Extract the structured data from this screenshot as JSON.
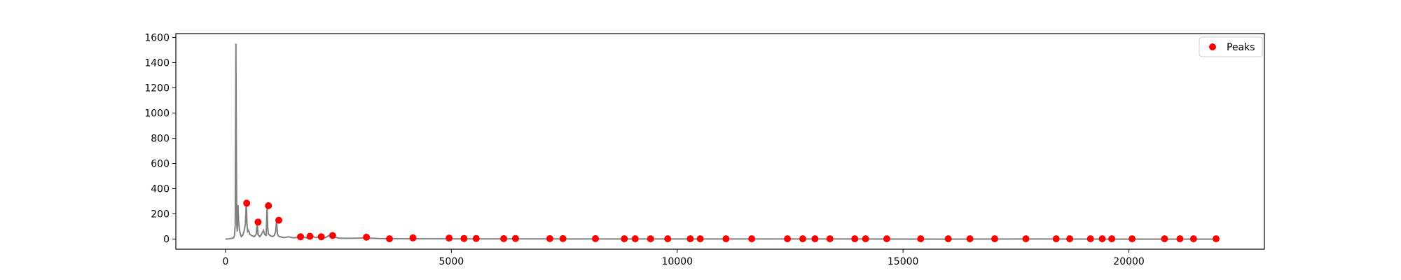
{
  "chart_data": {
    "type": "line",
    "title": "",
    "xlabel": "",
    "ylabel": "",
    "xlim": [
      -1100,
      23000
    ],
    "ylim": [
      -80,
      1630
    ],
    "x_ticks": [
      0,
      5000,
      10000,
      15000,
      20000
    ],
    "y_ticks": [
      0,
      200,
      400,
      600,
      800,
      1000,
      1200,
      1400,
      1600
    ],
    "grid": false,
    "legend": {
      "placement": "top-right",
      "entries": [
        "Peaks"
      ]
    },
    "colors": {
      "spectrum": "#808080",
      "peaks": "#ff0000",
      "frame": "#000000"
    },
    "series": [
      {
        "name": "",
        "style": "line",
        "x": [
          0,
          60,
          120,
          180,
          200,
          215,
          230,
          240,
          250,
          260,
          275,
          290,
          310,
          330,
          350,
          380,
          410,
          440,
          460,
          475,
          490,
          510,
          540,
          570,
          600,
          640,
          680,
          700,
          720,
          760,
          800,
          840,
          870,
          900,
          920,
          935,
          950,
          970,
          1000,
          1040,
          1080,
          1110,
          1130,
          1150,
          1170,
          1200,
          1250,
          1300,
          1400,
          1500,
          1600,
          1700,
          1800,
          1900,
          2000,
          2100,
          2200,
          2300,
          2500,
          2700,
          2900,
          3100,
          3400,
          3700,
          4000,
          5000,
          6000,
          8000,
          10000,
          12000,
          14000,
          16000,
          18000,
          20000,
          22000
        ],
        "y": [
          0,
          2,
          5,
          10,
          30,
          120,
          1550,
          700,
          120,
          60,
          270,
          140,
          70,
          40,
          20,
          30,
          60,
          120,
          290,
          120,
          60,
          70,
          40,
          30,
          25,
          20,
          40,
          130,
          35,
          20,
          40,
          70,
          35,
          30,
          260,
          90,
          40,
          35,
          25,
          20,
          30,
          60,
          150,
          40,
          25,
          20,
          15,
          12,
          18,
          10,
          14,
          20,
          10,
          24,
          12,
          18,
          10,
          30,
          8,
          6,
          7,
          9,
          5,
          4,
          3,
          2,
          2,
          1,
          1,
          1,
          1,
          0,
          1,
          0,
          0
        ]
      },
      {
        "name": "Peaks",
        "style": "scatter",
        "x": [
          470,
          720,
          950,
          1180,
          1660,
          1870,
          2120,
          2370,
          3120,
          3630,
          4150,
          4950,
          5280,
          5550,
          6160,
          6420,
          7180,
          7470,
          8190,
          8830,
          9070,
          9410,
          9790,
          10290,
          10510,
          11080,
          11650,
          12440,
          12780,
          13050,
          13380,
          13930,
          14170,
          14640,
          15390,
          16000,
          16480,
          17030,
          17720,
          18390,
          18690,
          19150,
          19410,
          19620,
          20070,
          20790,
          21130,
          21430,
          21930
        ],
        "y": [
          285,
          135,
          265,
          150,
          18,
          22,
          18,
          28,
          15,
          3,
          10,
          8,
          5,
          5,
          4,
          5,
          4,
          4,
          4,
          3,
          3,
          3,
          3,
          3,
          3,
          3,
          3,
          3,
          3,
          3,
          3,
          3,
          3,
          3,
          3,
          3,
          3,
          3,
          3,
          3,
          3,
          3,
          3,
          3,
          3,
          3,
          3,
          3,
          3
        ]
      }
    ]
  }
}
